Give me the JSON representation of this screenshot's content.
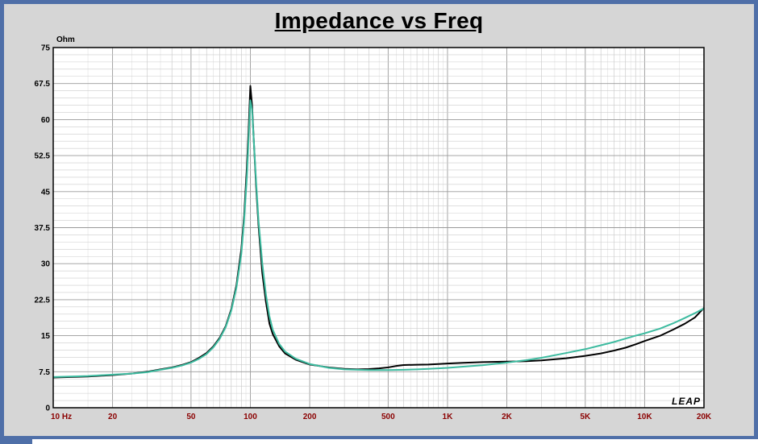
{
  "chart_data": {
    "type": "line",
    "title": "Impedance vs Freq",
    "ylabel": "Ohm",
    "xscale": "log",
    "xlim": [
      10,
      20000
    ],
    "ylim": [
      0,
      75
    ],
    "yticks": [
      {
        "value": 0,
        "label": "0"
      },
      {
        "value": 7.5,
        "label": "7.5"
      },
      {
        "value": 15,
        "label": "15"
      },
      {
        "value": 22.5,
        "label": "22.5"
      },
      {
        "value": 30,
        "label": "30"
      },
      {
        "value": 37.5,
        "label": "37.5"
      },
      {
        "value": 45,
        "label": "45"
      },
      {
        "value": 52.5,
        "label": "52.5"
      },
      {
        "value": 60,
        "label": "60"
      },
      {
        "value": 67.5,
        "label": "67.5"
      },
      {
        "value": 75,
        "label": "75"
      }
    ],
    "xticks": [
      {
        "value": 10,
        "label": "10  Hz"
      },
      {
        "value": 20,
        "label": "20"
      },
      {
        "value": 50,
        "label": "50"
      },
      {
        "value": 100,
        "label": "100"
      },
      {
        "value": 200,
        "label": "200"
      },
      {
        "value": 500,
        "label": "500"
      },
      {
        "value": 1000,
        "label": "1K"
      },
      {
        "value": 2000,
        "label": "2K"
      },
      {
        "value": 5000,
        "label": "5K"
      },
      {
        "value": 10000,
        "label": "10K"
      },
      {
        "value": 20000,
        "label": "20K"
      }
    ],
    "grid": true,
    "watermark": "LEAP",
    "series": [
      {
        "color": "#000000",
        "points": [
          [
            10,
            6.3
          ],
          [
            15,
            6.5
          ],
          [
            20,
            6.8
          ],
          [
            25,
            7.1
          ],
          [
            30,
            7.5
          ],
          [
            35,
            8.0
          ],
          [
            40,
            8.4
          ],
          [
            45,
            8.9
          ],
          [
            50,
            9.5
          ],
          [
            55,
            10.4
          ],
          [
            60,
            11.4
          ],
          [
            65,
            12.8
          ],
          [
            70,
            14.6
          ],
          [
            75,
            17.0
          ],
          [
            80,
            20.5
          ],
          [
            85,
            25.5
          ],
          [
            90,
            33
          ],
          [
            93,
            40
          ],
          [
            96,
            50
          ],
          [
            98,
            58
          ],
          [
            100,
            67
          ],
          [
            102,
            63
          ],
          [
            104,
            56
          ],
          [
            107,
            46
          ],
          [
            110,
            38
          ],
          [
            115,
            28
          ],
          [
            120,
            22
          ],
          [
            125,
            17.5
          ],
          [
            130,
            15.3
          ],
          [
            140,
            12.8
          ],
          [
            150,
            11.3
          ],
          [
            170,
            10.0
          ],
          [
            200,
            9.0
          ],
          [
            250,
            8.4
          ],
          [
            300,
            8.1
          ],
          [
            350,
            8.0
          ],
          [
            400,
            8.05
          ],
          [
            450,
            8.2
          ],
          [
            500,
            8.4
          ],
          [
            550,
            8.7
          ],
          [
            600,
            8.9
          ],
          [
            700,
            8.95
          ],
          [
            800,
            9.0
          ],
          [
            900,
            9.1
          ],
          [
            1000,
            9.2
          ],
          [
            1200,
            9.35
          ],
          [
            1500,
            9.5
          ],
          [
            2000,
            9.6
          ],
          [
            2500,
            9.7
          ],
          [
            3000,
            9.85
          ],
          [
            4000,
            10.3
          ],
          [
            5000,
            10.8
          ],
          [
            6000,
            11.3
          ],
          [
            7000,
            11.9
          ],
          [
            8000,
            12.5
          ],
          [
            9000,
            13.2
          ],
          [
            10000,
            13.9
          ],
          [
            12000,
            15.0
          ],
          [
            14000,
            16.3
          ],
          [
            16000,
            17.5
          ],
          [
            18000,
            18.8
          ],
          [
            20000,
            20.8
          ]
        ]
      },
      {
        "color": "#3dbba0",
        "points": [
          [
            10,
            6.4
          ],
          [
            15,
            6.6
          ],
          [
            20,
            6.9
          ],
          [
            25,
            7.1
          ],
          [
            30,
            7.4
          ],
          [
            35,
            7.9
          ],
          [
            40,
            8.3
          ],
          [
            45,
            8.8
          ],
          [
            50,
            9.4
          ],
          [
            55,
            10.2
          ],
          [
            60,
            11.2
          ],
          [
            65,
            12.6
          ],
          [
            70,
            14.4
          ],
          [
            75,
            16.8
          ],
          [
            80,
            20.2
          ],
          [
            85,
            25.0
          ],
          [
            90,
            32
          ],
          [
            93,
            39
          ],
          [
            96,
            48
          ],
          [
            98,
            56
          ],
          [
            100,
            64
          ],
          [
            102,
            62
          ],
          [
            104,
            56
          ],
          [
            107,
            47
          ],
          [
            110,
            39
          ],
          [
            115,
            30
          ],
          [
            120,
            23.5
          ],
          [
            125,
            19
          ],
          [
            130,
            16.2
          ],
          [
            140,
            13.3
          ],
          [
            150,
            11.7
          ],
          [
            170,
            10.2
          ],
          [
            200,
            9.1
          ],
          [
            250,
            8.3
          ],
          [
            300,
            8.0
          ],
          [
            350,
            7.9
          ],
          [
            400,
            7.85
          ],
          [
            450,
            7.85
          ],
          [
            500,
            7.85
          ],
          [
            600,
            7.9
          ],
          [
            700,
            8.0
          ],
          [
            800,
            8.1
          ],
          [
            900,
            8.2
          ],
          [
            1000,
            8.3
          ],
          [
            1200,
            8.55
          ],
          [
            1500,
            8.85
          ],
          [
            2000,
            9.4
          ],
          [
            2500,
            9.9
          ],
          [
            3000,
            10.4
          ],
          [
            4000,
            11.4
          ],
          [
            5000,
            12.2
          ],
          [
            6000,
            13.0
          ],
          [
            7000,
            13.7
          ],
          [
            8000,
            14.4
          ],
          [
            9000,
            15.0
          ],
          [
            10000,
            15.5
          ],
          [
            12000,
            16.5
          ],
          [
            14000,
            17.6
          ],
          [
            16000,
            18.7
          ],
          [
            18000,
            19.7
          ],
          [
            20000,
            20.7
          ]
        ]
      }
    ]
  }
}
